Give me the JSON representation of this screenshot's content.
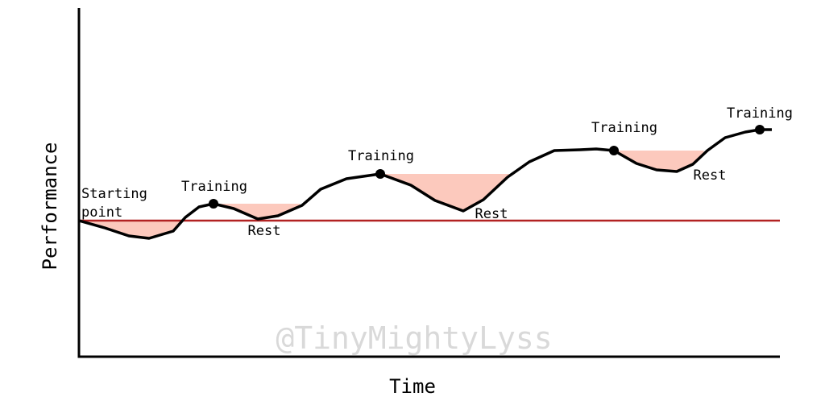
{
  "axes": {
    "x_label": "Time",
    "y_label": "Performance"
  },
  "annotations": {
    "start": [
      "Starting",
      "point"
    ],
    "training": [
      "Training",
      "Training",
      "Training",
      "Training"
    ],
    "rest": [
      "Rest",
      "Rest",
      "Rest"
    ]
  },
  "watermark": "@TinyMightyLyss"
}
